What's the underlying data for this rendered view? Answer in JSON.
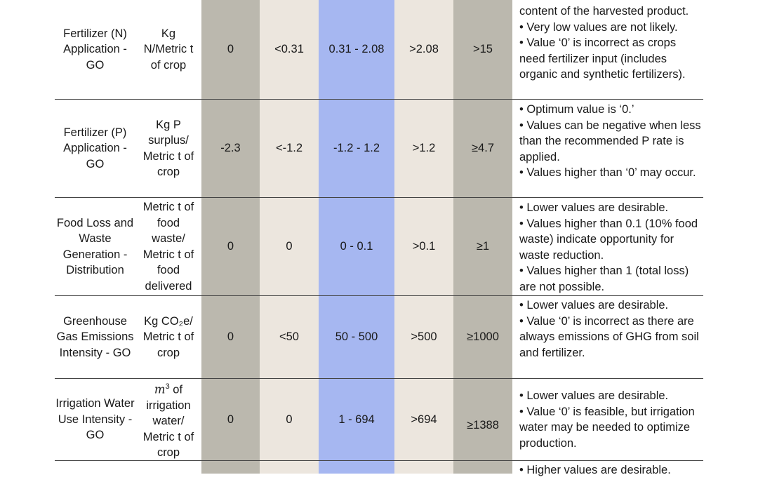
{
  "rows": [
    {
      "indicator": "Fertilizer (N) Application - GO",
      "unit": "Kg N/Metric t of crop",
      "v1": "0",
      "v2": "<0.31",
      "v3": "0.31 - 2.08",
      "v4": ">2.08",
      "v5": ">15",
      "notes": [
        "content of the harvested product.",
        "• Very low values are not likely.",
        "• Value ‘0’ is incorrect as crops need fertilizer input (includes organic and synthetic fertilizers)."
      ]
    },
    {
      "indicator": "Fertilizer (P) Application - GO",
      "unit": "Kg P surplus/ Metric t of crop",
      "v1": "-2.3",
      "v2": "<-1.2",
      "v3": "-1.2 - 1.2",
      "v4": ">1.2",
      "v5": "≥4.7",
      "notes": [
        "• Optimum value is ‘0.’",
        "• Values can be negative when less than the recommended P rate is applied.",
        "• Values higher than ‘0’ may occur."
      ]
    },
    {
      "indicator": "Food Loss and Waste Generation - Distribution",
      "unit": "Metric t of food waste/ Metric t of food delivered",
      "v1": "0",
      "v2": "0",
      "v3": "0 - 0.1",
      "v4": ">0.1",
      "v5": "≥1",
      "notes": [
        "• Lower values are desirable.",
        "• Values higher than 0.1 (10% food waste) indicate opportunity for waste reduction.",
        "• Values higher than 1 (total loss) are not possible."
      ]
    },
    {
      "indicator": "Greenhouse Gas Emissions Intensity - GO",
      "unit": "Kg CO₂e/ Metric t of crop",
      "v1": "0",
      "v2": "<50",
      "v3": "50 - 500",
      "v4": ">500",
      "v5": "≥1000",
      "notes": [
        "• Lower values are desirable.",
        "• Value ‘0’ is incorrect as there are always emissions of GHG from soil and fertilizer."
      ]
    },
    {
      "indicator": "Irrigation Water Use Intensity - GO",
      "unit_symbol": "m",
      "unit_exp": "3",
      "unit": " of irrigation water/ Metric t of crop",
      "v1": "0",
      "v2": "0",
      "v3": "1 - 694",
      "v4": ">694",
      "v5": "≥1388",
      "notes": [
        "• Lower values are desirable.",
        "• Value ‘0’ is feasible, but irrigation water may be needed to optimize production."
      ]
    },
    {
      "notes": [
        "• Higher values are desirable."
      ]
    }
  ]
}
